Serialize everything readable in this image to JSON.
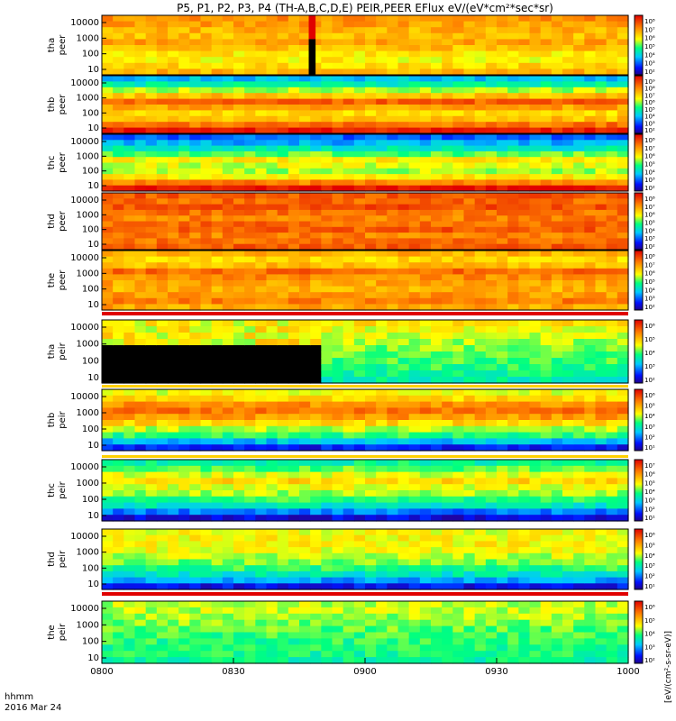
{
  "title": "P5, P1, P2, P3, P4 (TH-A,B,C,D,E) PEIR,PEER EFlux eV/(eV*cm²*sec*sr)",
  "chart_data": {
    "type": "heatmap",
    "title": "P5, P1, P2, P3, P4 (TH-A,B,C,D,E) PEIR,PEER EFlux eV/(eV*cm²*sec*sr)",
    "x_axis": {
      "ticks": [
        "0800",
        "0830",
        "0900",
        "0930",
        "1000"
      ],
      "format_label": "hhmm",
      "date_label": "2016 Mar 24"
    },
    "colorbar_label": "[eV/(cm²-s-sr-eV)]",
    "panels": [
      {
        "ylabel": [
          "tha",
          "peer"
        ],
        "yticks": [
          "10000",
          "1000",
          "100",
          "10"
        ],
        "cbar_ticks": [
          "10⁸",
          "10⁷",
          "10⁶",
          "10⁵",
          "10⁴",
          "10³",
          "10²"
        ],
        "scheme": "hot",
        "events": [
          {
            "kind": "column",
            "x": [
              0.393,
              0.406
            ],
            "ylow": 0.4,
            "color": "#000000",
            "ytop": 0.4
          }
        ]
      },
      {
        "ylabel": [
          "thb",
          "peer"
        ],
        "yticks": [
          "10000",
          "1000",
          "100",
          "10"
        ],
        "cbar_ticks": [
          "10⁹",
          "10⁸",
          "10⁷",
          "10⁶",
          "10⁵",
          "10⁴",
          "10³",
          "10²"
        ],
        "scheme": "mix",
        "events": []
      },
      {
        "ylabel": [
          "thc",
          "peer"
        ],
        "yticks": [
          "10000",
          "1000",
          "100",
          "10"
        ],
        "cbar_ticks": [
          "10⁸",
          "10⁷",
          "10⁶",
          "10⁵",
          "10⁴",
          "10³",
          "10²"
        ],
        "scheme": "cool",
        "events": []
      },
      {
        "ylabel": [
          "thd",
          "peer"
        ],
        "yticks": [
          "10000",
          "1000",
          "100",
          "10"
        ],
        "cbar_ticks": [
          "10⁸",
          "10⁷",
          "10⁶",
          "10⁵",
          "10⁴",
          "10³",
          "10²"
        ],
        "scheme": "red",
        "events": []
      },
      {
        "ylabel": [
          "the",
          "peer"
        ],
        "yticks": [
          "10000",
          "1000",
          "100",
          "10"
        ],
        "cbar_ticks": [
          "10⁸",
          "10⁷",
          "10⁶",
          "10⁵",
          "10⁴",
          "10³",
          "10²"
        ],
        "scheme": "warm",
        "events": []
      },
      {
        "ylabel": [
          "tha",
          "peir"
        ],
        "yticks": [
          "10000",
          "1000",
          "100",
          "10"
        ],
        "cbar_ticks": [
          "10⁶",
          "10⁵",
          "10⁴",
          "10³",
          "10²"
        ],
        "scheme": "tha_peir",
        "events": []
      },
      {
        "ylabel": [
          "thb",
          "peir"
        ],
        "yticks": [
          "10000",
          "1000",
          "100",
          "10"
        ],
        "cbar_ticks": [
          "10⁶",
          "10⁵",
          "10⁴",
          "10³",
          "10²",
          "10¹"
        ],
        "scheme": "ion_a",
        "events": []
      },
      {
        "ylabel": [
          "thc",
          "peir"
        ],
        "yticks": [
          "10000",
          "1000",
          "100",
          "10"
        ],
        "cbar_ticks": [
          "10⁷",
          "10⁶",
          "10⁵",
          "10⁴",
          "10³",
          "10²",
          "10¹"
        ],
        "scheme": "ion_b",
        "events": []
      },
      {
        "ylabel": [
          "thd",
          "peir"
        ],
        "yticks": [
          "10000",
          "1000",
          "100",
          "10"
        ],
        "cbar_ticks": [
          "10⁶",
          "10⁵",
          "10⁴",
          "10³",
          "10²",
          "10¹"
        ],
        "scheme": "ion_c",
        "events": []
      },
      {
        "ylabel": [
          "the",
          "peir"
        ],
        "yticks": [
          "10000",
          "1000",
          "100",
          "10"
        ],
        "cbar_ticks": [
          "10⁶",
          "10⁵",
          "10⁴",
          "10³",
          "10²"
        ],
        "scheme": "ion_d",
        "events": []
      }
    ]
  }
}
